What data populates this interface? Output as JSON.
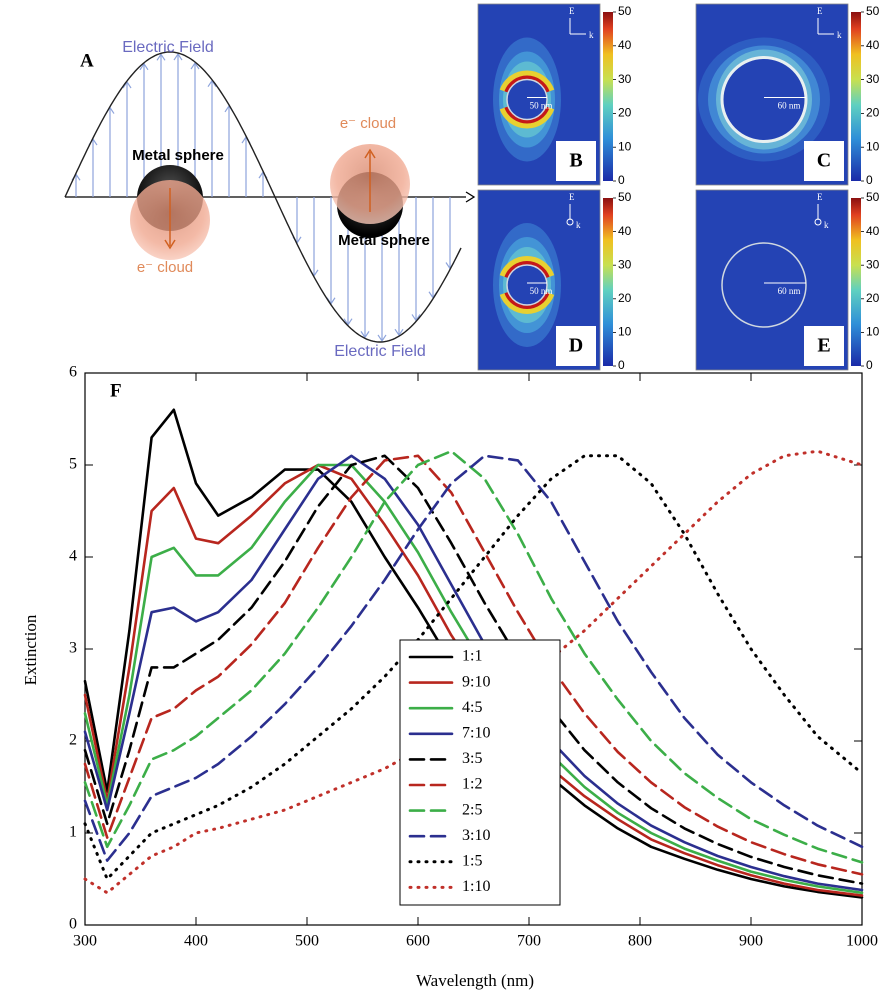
{
  "figure": {
    "panel_a": {
      "label": "A",
      "field_top": "Electric Field",
      "field_bottom": "Electric Field",
      "sphere_left": "Metal sphere",
      "sphere_right": "Metal sphere",
      "cloud_left": "e⁻ cloud",
      "cloud_right": "e⁻ cloud"
    },
    "maps": [
      {
        "label": "B",
        "scale": "50 nm"
      },
      {
        "label": "C",
        "scale": "60 nm"
      },
      {
        "label": "D",
        "scale": "50 nm"
      },
      {
        "label": "E",
        "scale": "60 nm"
      }
    ],
    "field_symbol": "E",
    "wave_symbol": "k",
    "colorbar_range": [
      0,
      50
    ],
    "colorbar_ticks": [
      0,
      10,
      20,
      30,
      40,
      50
    ]
  },
  "chart_data": {
    "type": "line",
    "label": "F",
    "x_label": "Wavelength (nm)",
    "y_label": "Extinction",
    "xlim": [
      300,
      1000
    ],
    "ylim": [
      0,
      6
    ],
    "xticks": [
      300,
      400,
      500,
      600,
      700,
      800,
      900,
      1000
    ],
    "yticks": [
      0,
      1,
      2,
      3,
      4,
      5,
      6
    ],
    "legend": "center",
    "x": [
      300,
      320,
      340,
      360,
      380,
      400,
      420,
      450,
      480,
      510,
      540,
      570,
      600,
      630,
      660,
      690,
      720,
      750,
      780,
      810,
      840,
      870,
      900,
      930,
      960,
      1000
    ],
    "series": [
      {
        "name": "1:1",
        "color": "#000000",
        "dash": "solid",
        "values": [
          2.65,
          1.45,
          3.2,
          5.3,
          5.6,
          4.8,
          4.45,
          4.65,
          4.95,
          4.95,
          4.6,
          4.0,
          3.45,
          2.85,
          2.35,
          1.95,
          1.6,
          1.3,
          1.05,
          0.85,
          0.72,
          0.6,
          0.5,
          0.42,
          0.36,
          0.3
        ]
      },
      {
        "name": "9:10",
        "color": "#b8261e",
        "dash": "solid",
        "values": [
          2.5,
          1.35,
          2.8,
          4.5,
          4.75,
          4.2,
          4.15,
          4.45,
          4.8,
          5.0,
          4.85,
          4.35,
          3.8,
          3.15,
          2.6,
          2.1,
          1.7,
          1.4,
          1.15,
          0.93,
          0.78,
          0.65,
          0.54,
          0.45,
          0.38,
          0.32
        ]
      },
      {
        "name": "4:5",
        "color": "#3cae48",
        "dash": "solid",
        "values": [
          2.3,
          1.3,
          2.5,
          4.0,
          4.1,
          3.8,
          3.8,
          4.1,
          4.6,
          5.0,
          5.0,
          4.6,
          4.05,
          3.4,
          2.8,
          2.3,
          1.85,
          1.5,
          1.22,
          1.0,
          0.83,
          0.7,
          0.58,
          0.49,
          0.42,
          0.35
        ]
      },
      {
        "name": "7:10",
        "color": "#2b2f8f",
        "dash": "solid",
        "values": [
          2.1,
          1.25,
          2.3,
          3.4,
          3.45,
          3.3,
          3.4,
          3.75,
          4.3,
          4.85,
          5.1,
          4.85,
          4.35,
          3.7,
          3.05,
          2.5,
          2.0,
          1.62,
          1.32,
          1.08,
          0.9,
          0.75,
          0.63,
          0.53,
          0.45,
          0.38
        ]
      },
      {
        "name": "3:5",
        "color": "#000000",
        "dash": "dashed",
        "values": [
          1.9,
          1.1,
          1.9,
          2.8,
          2.8,
          2.95,
          3.1,
          3.45,
          3.95,
          4.55,
          5.0,
          5.1,
          4.75,
          4.15,
          3.5,
          2.9,
          2.35,
          1.9,
          1.55,
          1.27,
          1.05,
          0.88,
          0.74,
          0.63,
          0.54,
          0.45
        ]
      },
      {
        "name": "1:2",
        "color": "#b8261e",
        "dash": "dashed",
        "values": [
          1.75,
          0.95,
          1.6,
          2.25,
          2.35,
          2.55,
          2.7,
          3.05,
          3.5,
          4.1,
          4.65,
          5.05,
          5.1,
          4.7,
          4.05,
          3.4,
          2.8,
          2.3,
          1.88,
          1.55,
          1.28,
          1.07,
          0.9,
          0.77,
          0.66,
          0.55
        ]
      },
      {
        "name": "2:5",
        "color": "#3cae48",
        "dash": "dashed",
        "values": [
          1.55,
          0.85,
          1.3,
          1.8,
          1.9,
          2.05,
          2.25,
          2.55,
          2.95,
          3.45,
          4.0,
          4.6,
          5.0,
          5.15,
          4.85,
          4.25,
          3.55,
          2.95,
          2.45,
          2.0,
          1.65,
          1.38,
          1.15,
          0.98,
          0.83,
          0.68
        ]
      },
      {
        "name": "3:10",
        "color": "#2b2f8f",
        "dash": "dashed",
        "values": [
          1.35,
          0.7,
          1.0,
          1.4,
          1.5,
          1.6,
          1.75,
          2.05,
          2.4,
          2.8,
          3.25,
          3.75,
          4.3,
          4.8,
          5.1,
          5.05,
          4.6,
          3.95,
          3.3,
          2.75,
          2.25,
          1.85,
          1.55,
          1.3,
          1.08,
          0.85
        ]
      },
      {
        "name": "1:5",
        "color": "#000000",
        "dash": "dotted",
        "values": [
          1.1,
          0.5,
          0.75,
          1.0,
          1.1,
          1.2,
          1.3,
          1.5,
          1.75,
          2.05,
          2.35,
          2.7,
          3.1,
          3.55,
          4.0,
          4.45,
          4.85,
          5.1,
          5.1,
          4.8,
          4.25,
          3.6,
          3.0,
          2.5,
          2.05,
          1.65
        ]
      },
      {
        "name": "1:10",
        "color": "#c0302a",
        "dash": "dotted",
        "values": [
          0.5,
          0.35,
          0.55,
          0.75,
          0.85,
          1.0,
          1.05,
          1.15,
          1.25,
          1.4,
          1.55,
          1.7,
          1.9,
          2.1,
          2.35,
          2.6,
          2.9,
          3.2,
          3.55,
          3.9,
          4.25,
          4.6,
          4.9,
          5.1,
          5.15,
          5.0
        ]
      }
    ]
  }
}
